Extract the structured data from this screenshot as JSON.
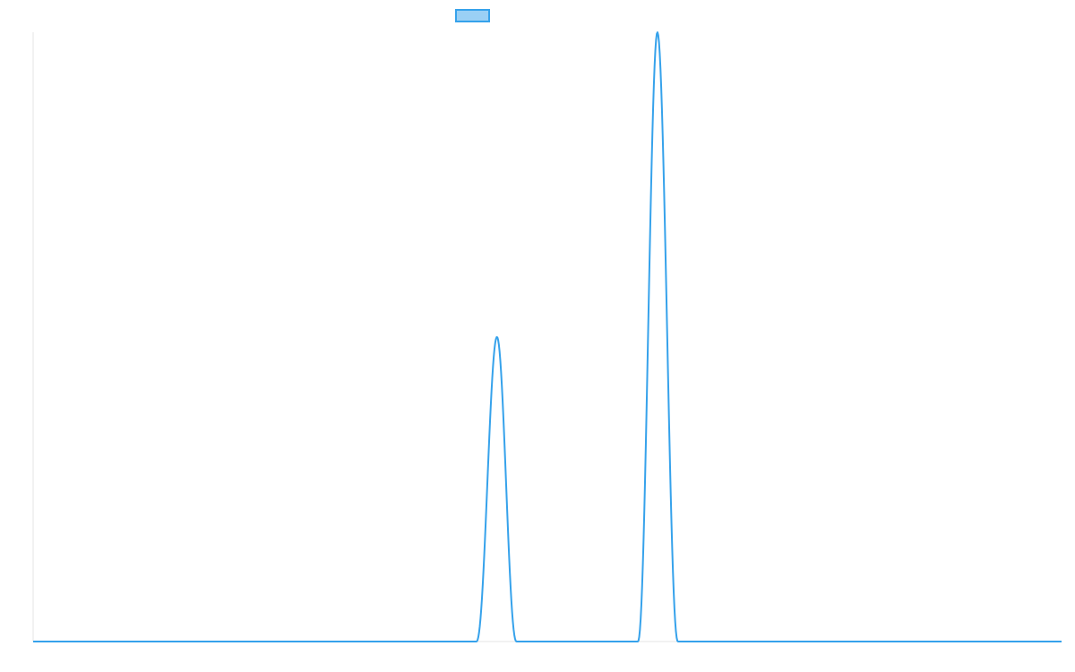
{
  "chart_data": {
    "type": "line",
    "title": "",
    "xlabel": "",
    "ylabel": "",
    "legend": {
      "position": "top",
      "entries": [
        {
          "label": "",
          "color": "#36a2eb",
          "fill": "#9ad0f5"
        }
      ]
    },
    "grid": false,
    "xlim": [
      0,
      1
    ],
    "ylim": [
      0,
      1
    ],
    "series": [
      {
        "color": "#36a2eb",
        "baseline": 0,
        "peaks": [
          {
            "start": 0.431,
            "center": 0.451,
            "end": 0.47,
            "height": 0.5
          },
          {
            "start": 0.588,
            "center": 0.607,
            "end": 0.627,
            "height": 1.0
          }
        ]
      }
    ]
  }
}
